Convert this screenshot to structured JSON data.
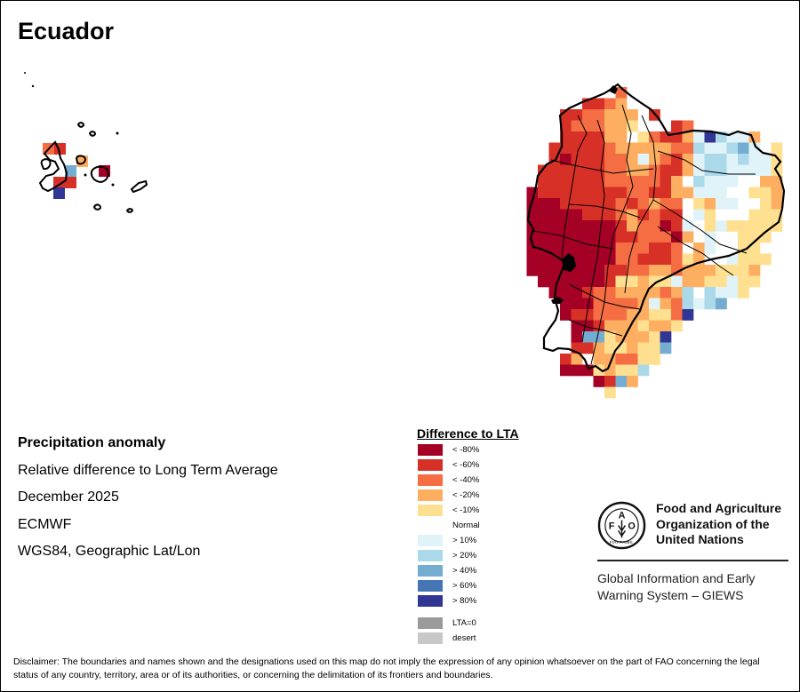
{
  "title": "Ecuador",
  "info": {
    "heading": "Precipitation anomaly",
    "line1": "Relative difference to Long Term Average",
    "line2": "December 2025",
    "line3": "ECMWF",
    "line4": "WGS84, Geographic Lat/Lon"
  },
  "legend": {
    "title": "Difference to LTA",
    "items": [
      {
        "code": "A",
        "label": "< -80%",
        "color": "#a50026"
      },
      {
        "code": "B",
        "label": "< -60%",
        "color": "#d73027"
      },
      {
        "code": "C",
        "label": "< -40%",
        "color": "#f46d43"
      },
      {
        "code": "D",
        "label": "< -20%",
        "color": "#fdae61"
      },
      {
        "code": "E",
        "label": "< -10%",
        "color": "#fee090"
      },
      {
        "code": "N",
        "label": "Normal",
        "color": "#ffffff"
      },
      {
        "code": "F",
        "label": "> 10%",
        "color": "#e0f3f8"
      },
      {
        "code": "G",
        "label": "> 20%",
        "color": "#abd9e9"
      },
      {
        "code": "H",
        "label": "> 40%",
        "color": "#74add1"
      },
      {
        "code": "I",
        "label": "> 60%",
        "color": "#4575b4"
      },
      {
        "code": "J",
        "label": "> 80%",
        "color": "#313695"
      },
      {
        "code": "Z",
        "label": "LTA=0",
        "color": "#9a9a9a"
      },
      {
        "code": "Y",
        "label": "desert",
        "color": "#c8c8c8"
      }
    ]
  },
  "map": {
    "mainland_grid": [
      "........C...............",
      ".....BBCD...............",
      "...BBCCDDD.B............",
      "...BCCCDDEN..BC.........",
      "...BBBBDDNECBBDFJGFFD...",
      "..BBBBBCDDDDDCCGFFGHFNE.",
      "..BABBBCCDFDCBDFGGFGFFE.",
      ".BBBBBBCCDDCBBDFGGFFFFE.",
      ".BBBBBBCCCCCBDNGFFFNNDD.",
      "ABBBBBBBBCCBBDDFFFNNEEDN",
      "AAABBBBBCBCDCCNEDFFNNED.",
      "AAAAABBBCDBCBBNFENNNEEEN",
      "AAAAAAAABDCCABFNEFEEEEE.",
      "AAAAAAAABBCCCADNFNNEEE..",
      "AAAAAAAACCCBBCNDFNNEE...",
      "AAAAAAAACCBBBCEDNNFEEE..",
      "AAAAAAABBCCDDCDDDEEEDN..",
      ".AAAAAABEEDEEFDDEEFEE...",
      "..AAABCCDDDDCDGNGFFE....",
      "...AAACCCCDFDCGFGH......",
      "...ABBCCCDDEECJ.........",
      "....AABDDDEDDE..........",
      "....AHHEDDDEJ...........",
      "....BBDEEDEEH...........",
      "...BDNDDCCEE............",
      "...AAAEDEEG.............",
      "......ABHDN.............",
      ".......EN..............."
    ],
    "galapagos_cells": [
      {
        "code": "C"
      },
      {
        "code": "B"
      },
      {
        "code": "D"
      },
      {
        "code": "H"
      },
      {
        "code": "A"
      },
      {
        "code": "B"
      },
      {
        "code": "B"
      },
      {
        "code": "J"
      }
    ]
  },
  "fao": {
    "name_line1": "Food and Agriculture",
    "name_line2": "Organization of the",
    "name_line3": "United Nations",
    "logo_letters": [
      "F",
      "A",
      "O"
    ],
    "logo_motto": "FIAT PANIS",
    "giews_line1": "Global Information and Early",
    "giews_line2": "Warning System – GIEWS"
  },
  "disclaimer": "Disclaimer: The boundaries and names shown and the designations used on this map do not imply the expression of any opinion whatsoever on the part of FAO concerning the legal status of any country, territory, area or of its authorities, or concerning the delimitation of its frontiers and boundaries."
}
